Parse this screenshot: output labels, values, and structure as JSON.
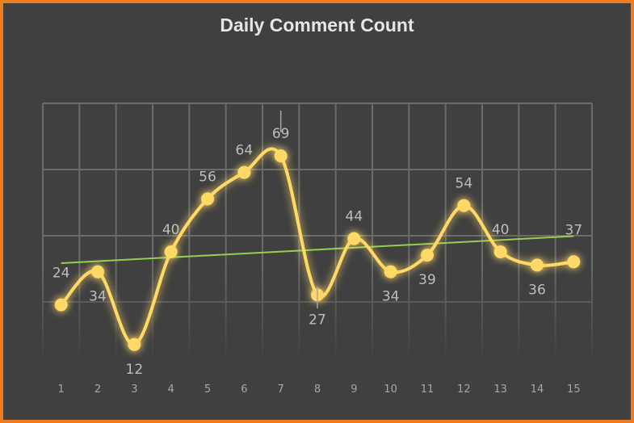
{
  "chart_data": {
    "type": "line",
    "title": "Daily Comment Count",
    "xlabel": "",
    "ylabel": "",
    "categories": [
      "1",
      "2",
      "3",
      "4",
      "5",
      "6",
      "7",
      "8",
      "9",
      "10",
      "11",
      "12",
      "13",
      "14",
      "15"
    ],
    "series": [
      {
        "values": [
          24,
          34,
          12,
          40,
          56,
          64,
          69,
          27,
          44,
          34,
          39,
          54,
          40,
          36,
          37
        ],
        "color": "#ffd966",
        "smooth": true,
        "markers": "circle"
      }
    ],
    "trendline": {
      "type": "linear",
      "color": "#92d050"
    },
    "ylim": [
      0,
      80
    ],
    "grid": true,
    "legend": "none",
    "background": "#404040",
    "border_color": "#ee7d22"
  }
}
